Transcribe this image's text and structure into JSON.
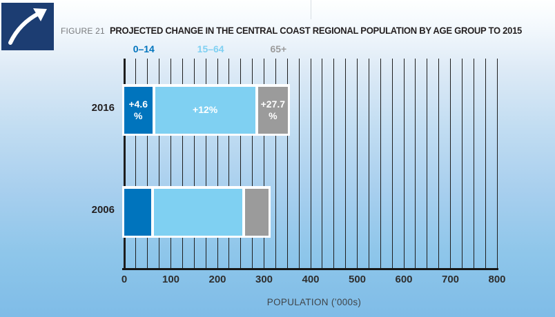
{
  "header": {
    "figure_label": "FIGURE 21",
    "title": "PROJECTED CHANGE IN THE CENTRAL COAST REGIONAL POPULATION BY AGE GROUP TO 2015"
  },
  "icon": {
    "name": "growth-arrow-icon",
    "background": "#1c3d72",
    "arrow_color": "#ffffff"
  },
  "chart_data": {
    "type": "bar",
    "orientation": "horizontal",
    "stacked": true,
    "title": "PROJECTED CHANGE IN THE CENTRAL COAST REGIONAL POPULATION BY AGE GROUP TO 2015",
    "xlabel": "POPULATION (’000s)",
    "xlim": [
      0,
      800
    ],
    "xticks": [
      0,
      100,
      200,
      300,
      400,
      500,
      600,
      700,
      800
    ],
    "gridline_interval": 25,
    "grid": true,
    "categories": [
      "2016",
      "2006"
    ],
    "series": [
      {
        "name": "0–14",
        "color": "#0074bd",
        "values": [
          66,
          63
        ],
        "pct_change": "+4.6%"
      },
      {
        "name": "15–64",
        "color": "#7fd0f2",
        "values": [
          221,
          197
        ],
        "pct_change": "+12%"
      },
      {
        "name": "65+",
        "color": "#9b9b9b",
        "values": [
          70,
          55
        ],
        "pct_change": "+27.7%"
      }
    ],
    "bar_labels": [
      [
        "+4.6\n%",
        "+12%",
        "+27.7\n%"
      ],
      [
        "",
        "",
        ""
      ]
    ],
    "legend_position": "top"
  }
}
